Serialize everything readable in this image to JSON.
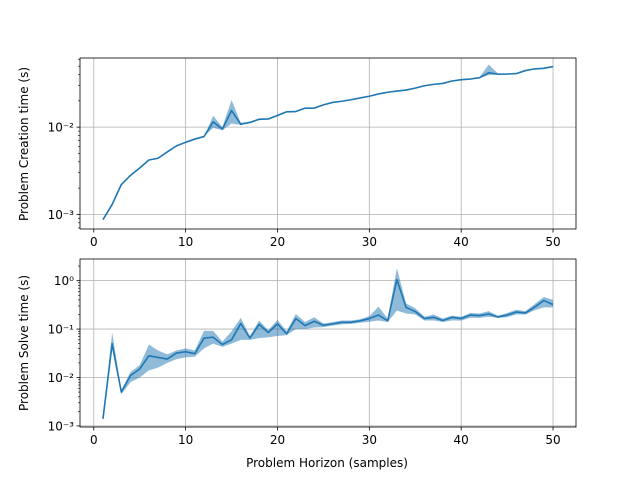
{
  "chart_data": [
    {
      "type": "line",
      "ylabel": "Problem Creation time (s)",
      "xlabel": "",
      "yscale": "log",
      "xlim": [
        -1.5,
        52.5
      ],
      "ylim": [
        0.00068,
        0.062
      ],
      "grid": true,
      "xticks": [
        0,
        10,
        20,
        30,
        40,
        50
      ],
      "xtick_labels": [
        "0",
        "10",
        "20",
        "30",
        "40",
        "50"
      ],
      "yticks": [
        0.001,
        0.01
      ],
      "ytick_labels": [
        "10⁻³",
        "10⁻²"
      ],
      "line_color": "#1f77b4",
      "band_color": "#1f77b4",
      "series": [
        {
          "x": [
            1,
            2,
            3,
            4,
            5,
            6,
            7,
            8,
            9,
            10,
            11,
            12,
            13,
            14,
            15,
            16,
            17,
            18,
            19,
            20,
            21,
            22,
            23,
            24,
            25,
            26,
            27,
            28,
            29,
            30,
            31,
            32,
            33,
            34,
            35,
            36,
            37,
            38,
            39,
            40,
            41,
            42,
            43,
            44,
            45,
            46,
            47,
            48,
            49,
            50
          ],
          "values": [
            0.00087,
            0.0013,
            0.0022,
            0.0028,
            0.0034,
            0.0042,
            0.0044,
            0.0052,
            0.0061,
            0.0067,
            0.0073,
            0.0078,
            0.0115,
            0.0095,
            0.0155,
            0.0108,
            0.0113,
            0.0123,
            0.0124,
            0.0136,
            0.015,
            0.0151,
            0.0165,
            0.0165,
            0.018,
            0.0192,
            0.0198,
            0.0206,
            0.0216,
            0.0226,
            0.024,
            0.0251,
            0.0259,
            0.0266,
            0.028,
            0.0298,
            0.0309,
            0.0317,
            0.0338,
            0.035,
            0.0356,
            0.0369,
            0.042,
            0.0405,
            0.0406,
            0.0411,
            0.0445,
            0.0465,
            0.0472,
            0.0495
          ],
          "lower": [
            0.00087,
            0.0013,
            0.0022,
            0.0028,
            0.0034,
            0.0042,
            0.0044,
            0.0052,
            0.0061,
            0.0067,
            0.0073,
            0.0078,
            0.0098,
            0.0092,
            0.011,
            0.0106,
            0.0111,
            0.0121,
            0.0122,
            0.0134,
            0.0148,
            0.0149,
            0.0163,
            0.0163,
            0.0178,
            0.019,
            0.0196,
            0.0204,
            0.0214,
            0.0224,
            0.0238,
            0.0249,
            0.0257,
            0.0264,
            0.0278,
            0.0296,
            0.0307,
            0.0315,
            0.0336,
            0.0347,
            0.0353,
            0.0365,
            0.0395,
            0.04,
            0.0402,
            0.0407,
            0.044,
            0.046,
            0.0468,
            0.049
          ],
          "upper": [
            0.00087,
            0.0013,
            0.0022,
            0.0028,
            0.0034,
            0.0042,
            0.0044,
            0.0052,
            0.0061,
            0.0067,
            0.0073,
            0.0078,
            0.0135,
            0.01,
            0.0205,
            0.0112,
            0.0116,
            0.0126,
            0.0127,
            0.0139,
            0.0153,
            0.0154,
            0.0168,
            0.0168,
            0.0183,
            0.0195,
            0.0201,
            0.0209,
            0.0219,
            0.0229,
            0.0243,
            0.0254,
            0.0262,
            0.0269,
            0.0283,
            0.0301,
            0.0312,
            0.032,
            0.0341,
            0.0354,
            0.036,
            0.0375,
            0.052,
            0.0412,
            0.0412,
            0.0416,
            0.045,
            0.047,
            0.0478,
            0.05
          ]
        }
      ]
    },
    {
      "type": "line",
      "ylabel": "Problem Solve time (s)",
      "xlabel": "Problem Horizon (samples)",
      "yscale": "log",
      "xlim": [
        -1.5,
        52.5
      ],
      "ylim": [
        0.00095,
        2.8
      ],
      "grid": true,
      "xticks": [
        0,
        10,
        20,
        30,
        40,
        50
      ],
      "xtick_labels": [
        "0",
        "10",
        "20",
        "30",
        "40",
        "50"
      ],
      "yticks": [
        0.001,
        0.01,
        0.1,
        1
      ],
      "ytick_labels": [
        "10⁻³",
        "10⁻²",
        "10⁻¹",
        "10⁰"
      ],
      "line_color": "#1f77b4",
      "band_color": "#1f77b4",
      "series": [
        {
          "x": [
            1,
            2,
            3,
            4,
            5,
            6,
            7,
            8,
            9,
            10,
            11,
            12,
            13,
            14,
            15,
            16,
            17,
            18,
            19,
            20,
            21,
            22,
            23,
            24,
            25,
            26,
            27,
            28,
            29,
            30,
            31,
            32,
            33,
            34,
            35,
            36,
            37,
            38,
            39,
            40,
            41,
            42,
            43,
            44,
            45,
            46,
            47,
            48,
            49,
            50
          ],
          "values": [
            0.0014,
            0.05,
            0.005,
            0.011,
            0.015,
            0.028,
            0.026,
            0.024,
            0.032,
            0.034,
            0.031,
            0.065,
            0.068,
            0.048,
            0.06,
            0.13,
            0.065,
            0.125,
            0.085,
            0.128,
            0.08,
            0.165,
            0.118,
            0.145,
            0.12,
            0.128,
            0.138,
            0.138,
            0.148,
            0.165,
            0.195,
            0.148,
            1.05,
            0.28,
            0.23,
            0.165,
            0.175,
            0.15,
            0.175,
            0.165,
            0.195,
            0.19,
            0.205,
            0.178,
            0.195,
            0.225,
            0.215,
            0.285,
            0.39,
            0.32
          ],
          "lower": [
            0.0014,
            0.038,
            0.0045,
            0.008,
            0.01,
            0.014,
            0.016,
            0.02,
            0.024,
            0.026,
            0.027,
            0.04,
            0.05,
            0.043,
            0.05,
            0.06,
            0.06,
            0.065,
            0.068,
            0.072,
            0.075,
            0.1,
            0.1,
            0.108,
            0.11,
            0.118,
            0.125,
            0.128,
            0.135,
            0.142,
            0.15,
            0.14,
            0.24,
            0.21,
            0.2,
            0.15,
            0.15,
            0.14,
            0.15,
            0.15,
            0.17,
            0.17,
            0.18,
            0.17,
            0.175,
            0.2,
            0.2,
            0.245,
            0.28,
            0.28
          ],
          "upper": [
            0.0014,
            0.085,
            0.0055,
            0.013,
            0.018,
            0.048,
            0.036,
            0.03,
            0.036,
            0.04,
            0.036,
            0.092,
            0.092,
            0.055,
            0.09,
            0.17,
            0.072,
            0.15,
            0.095,
            0.155,
            0.09,
            0.205,
            0.14,
            0.175,
            0.13,
            0.14,
            0.15,
            0.15,
            0.16,
            0.185,
            0.29,
            0.165,
            1.8,
            0.34,
            0.27,
            0.18,
            0.2,
            0.165,
            0.19,
            0.18,
            0.215,
            0.21,
            0.235,
            0.19,
            0.215,
            0.25,
            0.235,
            0.33,
            0.46,
            0.4
          ]
        }
      ]
    }
  ]
}
